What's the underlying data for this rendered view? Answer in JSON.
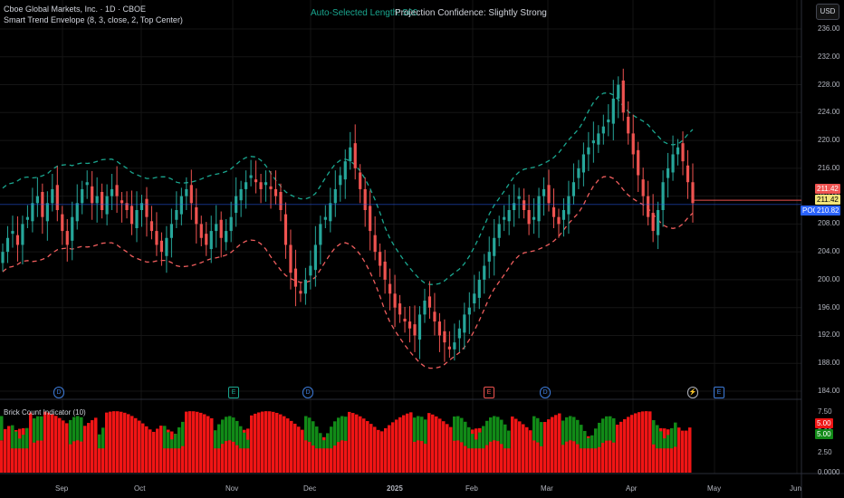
{
  "legend": {
    "symbol": "Cboe Global Markets, Inc. · 1D · CBOE",
    "indicator": "Smart Trend Envelope (8, 3, close, 2, Top Center)"
  },
  "header": {
    "auto_length": "Auto-Selected Length: 500",
    "projection": "Projection Confidence: Slightly Strong"
  },
  "currency_button": "USD",
  "price_axis": [
    "236.00",
    "232.00",
    "228.00",
    "224.00",
    "220.00",
    "216.00",
    "212.00",
    "208.00",
    "204.00",
    "200.00",
    "196.00",
    "192.00",
    "188.00",
    "184.00"
  ],
  "price_tags": {
    "last": "211.42",
    "close": "211.42",
    "poc_label": "POC",
    "poc": "210.82"
  },
  "time_axis": [
    "Sep",
    "Oct",
    "Nov",
    "Dec",
    "2025",
    "Feb",
    "Mar",
    "Apr",
    "May",
    "Jun"
  ],
  "events": [
    "D",
    "E",
    "D",
    "E",
    "D",
    "⚡",
    "E"
  ],
  "lower_panel": {
    "title": "Brick Count Indicator (10)",
    "axis": [
      "7.50",
      "5.00",
      "2.50",
      "0.0000"
    ],
    "tags": [
      "5.00",
      "5.00"
    ]
  },
  "colors": {
    "up": "#26a69a",
    "down": "#ef5350",
    "upper_band": "#1aa68f",
    "lower_band": "#ef5d5d",
    "green_bar": "#118a17",
    "red_bar": "#f01515"
  },
  "chart_data": {
    "type": "candlestick",
    "price_range": [
      183,
      237
    ],
    "x_range_months": [
      "Aug 2024",
      "Jun 2025"
    ],
    "candles_close": [
      204,
      206,
      207,
      205,
      208,
      209,
      211,
      212,
      209,
      211,
      213,
      210,
      207,
      205,
      209,
      211,
      213,
      214,
      211,
      212,
      210,
      212,
      213,
      212,
      211,
      210,
      208,
      210,
      211,
      209,
      207,
      205,
      204,
      206,
      208,
      210,
      212,
      213,
      211,
      208,
      206,
      205,
      207,
      208,
      206,
      207,
      209,
      212,
      213,
      214,
      215,
      214,
      213,
      214,
      213,
      212,
      210,
      205,
      201,
      199,
      198,
      200,
      202,
      205,
      208,
      209,
      211,
      213,
      215,
      217,
      219,
      216,
      213,
      210,
      207,
      204,
      202,
      200,
      198,
      196,
      195,
      194,
      193,
      192,
      195,
      197,
      196,
      194,
      192,
      191,
      190,
      191,
      193,
      195,
      196,
      198,
      200,
      202,
      204,
      206,
      208,
      209,
      210,
      211,
      212,
      210,
      208,
      209,
      212,
      213,
      211,
      209,
      208,
      210,
      212,
      214,
      216,
      218,
      219,
      220,
      221,
      222,
      223,
      226,
      228,
      224,
      221,
      218,
      215,
      212,
      209,
      207,
      210,
      214,
      216,
      218,
      219,
      217,
      214,
      211
    ]
  }
}
